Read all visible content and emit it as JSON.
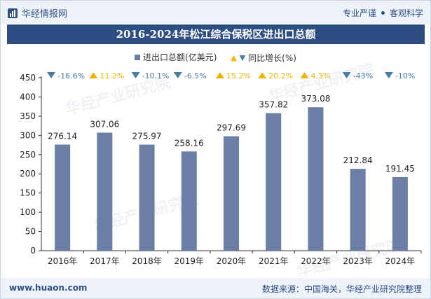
{
  "header": {
    "brand": "华经情报网",
    "tag_left": "专业严谨",
    "tag_right": "客观科学"
  },
  "title": "2016-2024年松江综合保税区进出口总额",
  "legend": {
    "bar_label": "进出口总额(亿美元)",
    "growth_label": "同比增长(%)"
  },
  "footer": {
    "url": "www.huaon.com",
    "source": "数据来源：中国海关，华经产业研究院整理"
  },
  "watermark": "华经产业研究院",
  "colors": {
    "bar": "#6a7ea6",
    "up": "#f0b400",
    "down": "#4a7ea6",
    "title_bg": "#2d4e83"
  },
  "chart_data": {
    "type": "bar",
    "categories": [
      "2016年",
      "2017年",
      "2018年",
      "2019年",
      "2020年",
      "2021年",
      "2022年",
      "2023年",
      "2024年"
    ],
    "values": [
      276.14,
      307.06,
      275.97,
      258.16,
      297.69,
      357.82,
      373.08,
      212.84,
      191.45
    ],
    "value_labels": [
      "276.14",
      "307.06",
      "275.97",
      "258.16",
      "297.69",
      "357.82",
      "373.08",
      "212.84",
      "191.45"
    ],
    "growth": [
      -16.6,
      11.2,
      -10.1,
      -6.5,
      15.2,
      20.2,
      4.3,
      -43,
      -10
    ],
    "growth_labels": [
      "-16.6%",
      "11.2%",
      "-10.1%",
      "-6.5%",
      "15.2%",
      "20.2%",
      "4.3%",
      "-43%",
      "-10%"
    ],
    "ylim": [
      0,
      450
    ],
    "yticks": [
      "0",
      "50",
      "100",
      "150",
      "200",
      "250",
      "300",
      "350",
      "400",
      "450"
    ],
    "grid": false,
    "legend_position": "top-center"
  }
}
